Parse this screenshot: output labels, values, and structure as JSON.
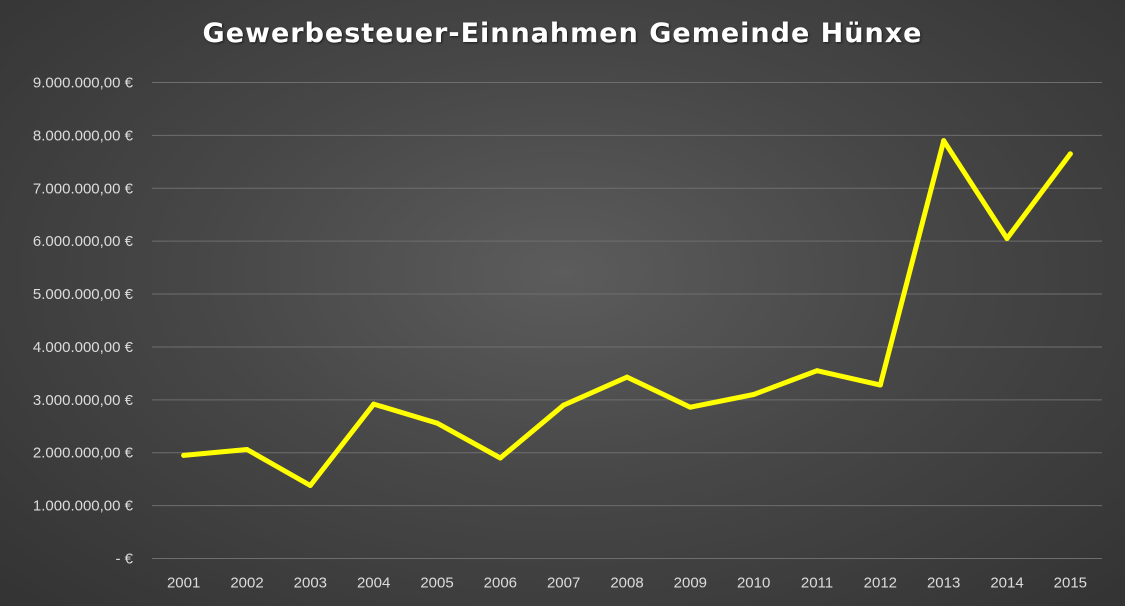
{
  "chart_data": {
    "type": "line",
    "title": "Gewerbesteuer-Einnahmen Gemeinde Hünxe",
    "xlabel": "",
    "ylabel": "",
    "categories": [
      "2001",
      "2002",
      "2003",
      "2004",
      "2005",
      "2006",
      "2007",
      "2008",
      "2009",
      "2010",
      "2011",
      "2012",
      "2013",
      "2014",
      "2015"
    ],
    "series": [
      {
        "values": [
          1950000,
          2060000,
          1380000,
          2920000,
          2560000,
          1900000,
          2900000,
          3430000,
          2860000,
          3100000,
          3550000,
          3280000,
          7900000,
          6050000,
          7650000
        ],
        "color": "#ffff00"
      }
    ],
    "ylim": [
      0,
      9000000
    ],
    "yticks": [
      0,
      1000000,
      2000000,
      3000000,
      4000000,
      5000000,
      6000000,
      7000000,
      8000000,
      9000000
    ],
    "ytick_labels": [
      "-   €",
      "1.000.000,00 €",
      "2.000.000,00 €",
      "3.000.000,00 €",
      "4.000.000,00 €",
      "5.000.000,00 €",
      "6.000.000,00 €",
      "7.000.000,00 €",
      "8.000.000,00 €",
      "9.000.000,00 €"
    ],
    "grid": true,
    "legend": "none",
    "background": "#474747",
    "grid_color": "#6e6e6e",
    "text_color": "#dcdcdc"
  }
}
